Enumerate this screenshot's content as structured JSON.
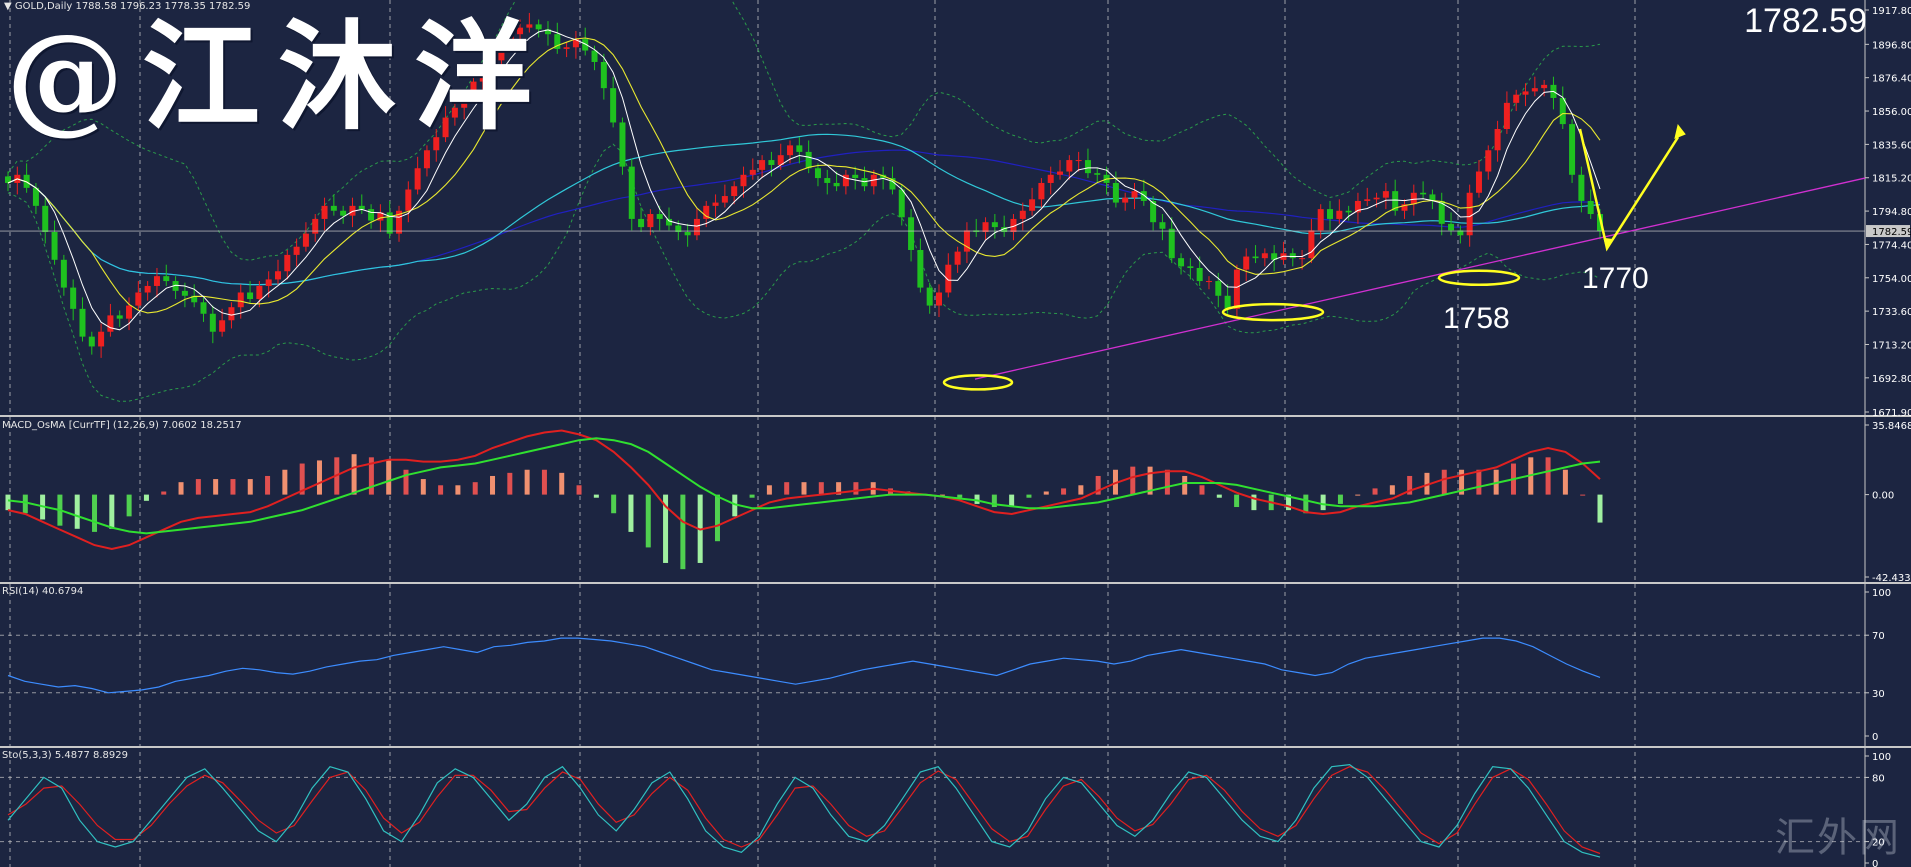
{
  "watermark": "@江沐洋",
  "corner_mark": "汇外网",
  "header": {
    "symbol": "GOLD,Daily",
    "ohlc": "1788.58 1796.23 1778.35 1782.59",
    "last_price": "1782.59"
  },
  "annotations": [
    "1758",
    "1770"
  ],
  "colors": {
    "background": "#1c2541",
    "bull_candle": "#ef2020",
    "bear_candle": "#1fc11f",
    "ma_fast": "#ffffff",
    "ma_mid": "#e8e830",
    "ma_slow1": "#30c8d8",
    "ma_slow2": "#2020c0",
    "trendline": "#d030d0",
    "arrow": "#ffff20",
    "rsi": "#3c8cff",
    "sto_main": "#30c0c0",
    "sto_signal": "#e02020"
  },
  "chart_data": [
    {
      "type": "candlestick",
      "title": "GOLD,Daily",
      "ylim": [
        1671.9,
        1917.8
      ],
      "yticks": [
        "1917.80",
        "1896.80",
        "1876.40",
        "1856.00",
        "1835.60",
        "1815.20",
        "1794.80",
        "1774.40",
        "1754.00",
        "1733.60",
        "1713.20",
        "1692.80",
        "1671.90"
      ],
      "last_price_tag": "1782.59",
      "close": [
        1812,
        1817,
        1809,
        1798,
        1782,
        1765,
        1748,
        1735,
        1718,
        1712,
        1721,
        1731,
        1729,
        1737,
        1745,
        1749,
        1755,
        1752,
        1746,
        1743,
        1739,
        1732,
        1721,
        1728,
        1736,
        1745,
        1741,
        1749,
        1753,
        1758,
        1768,
        1773,
        1781,
        1790,
        1798,
        1795,
        1792,
        1798,
        1796,
        1789,
        1794,
        1781,
        1795,
        1808,
        1821,
        1832,
        1840,
        1852,
        1858,
        1864,
        1874,
        1880,
        1887,
        1897,
        1903,
        1907,
        1909,
        1906,
        1903,
        1894,
        1895,
        1900,
        1893,
        1886,
        1870,
        1849,
        1822,
        1790,
        1785,
        1793,
        1790,
        1786,
        1782,
        1780,
        1790,
        1798,
        1800,
        1804,
        1810,
        1817,
        1820,
        1826,
        1823,
        1829,
        1835,
        1831,
        1821,
        1815,
        1812,
        1810,
        1817,
        1815,
        1810,
        1817,
        1815,
        1808,
        1791,
        1771,
        1748,
        1737,
        1745,
        1762,
        1770,
        1783,
        1782,
        1788,
        1785,
        1782,
        1790,
        1795,
        1802,
        1812,
        1817,
        1819,
        1826,
        1826,
        1818,
        1817,
        1812,
        1800,
        1803,
        1807,
        1801,
        1788,
        1784,
        1766,
        1761,
        1760,
        1752,
        1752,
        1743,
        1735,
        1759,
        1767,
        1766,
        1769,
        1765,
        1769,
        1766,
        1766,
        1783,
        1796,
        1790,
        1795,
        1794,
        1801,
        1802,
        1803,
        1807,
        1795,
        1799,
        1806,
        1805,
        1801,
        1787,
        1783,
        1780,
        1806,
        1819,
        1832,
        1845,
        1861,
        1866,
        1868,
        1870,
        1872,
        1864,
        1848,
        1817,
        1801,
        1793,
        1782.59
      ],
      "indicators": [
        "MA white",
        "MA yellow",
        "MA cyan",
        "MA blue",
        "Bollinger bands (green dotted)"
      ],
      "marked_levels": [
        1758,
        1770
      ]
    },
    {
      "type": "histogram",
      "title": "MACD_OsMA [CurrTF] (12,26,9) 7.0602 18.2517",
      "ylim": [
        -42.4336,
        35.8468
      ],
      "yticks": [
        "35.8468",
        "0.00",
        "-42.4336"
      ],
      "series": [
        {
          "name": "MACD",
          "values": [
            -8,
            -10,
            -14,
            -18,
            -22,
            -26,
            -28,
            -26,
            -22,
            -18,
            -14,
            -12,
            -11,
            -10,
            -9,
            -6,
            -2,
            2,
            6,
            10,
            14,
            16,
            18,
            18,
            17,
            17,
            18,
            20,
            24,
            27,
            30,
            32,
            33,
            31,
            28,
            22,
            14,
            5,
            -6,
            -14,
            -18,
            -16,
            -12,
            -8,
            -4,
            -2,
            -1,
            0,
            1,
            2,
            3,
            2,
            1,
            0,
            -1,
            -3,
            -6,
            -9,
            -10,
            -8,
            -6,
            -4,
            -2,
            2,
            6,
            9,
            11,
            12,
            12,
            9,
            5,
            1,
            -2,
            -4,
            -6,
            -9,
            -10,
            -9,
            -6,
            -4,
            -2,
            2,
            5,
            8,
            10,
            12,
            14,
            18,
            22,
            24,
            22,
            16,
            8
          ]
        },
        {
          "name": "Signal",
          "values": [
            -3,
            -4,
            -6,
            -8,
            -11,
            -14,
            -17,
            -19,
            -20,
            -19,
            -18,
            -17,
            -16,
            -15,
            -14,
            -12,
            -10,
            -8,
            -5,
            -2,
            1,
            4,
            7,
            10,
            12,
            14,
            15,
            16,
            18,
            20,
            22,
            24,
            26,
            28,
            29,
            28,
            26,
            22,
            16,
            10,
            4,
            -1,
            -5,
            -7,
            -7,
            -6,
            -5,
            -4,
            -3,
            -2,
            -1,
            0,
            0,
            0,
            -1,
            -2,
            -3,
            -5,
            -6,
            -7,
            -7,
            -6,
            -5,
            -4,
            -2,
            0,
            2,
            4,
            6,
            6,
            6,
            5,
            3,
            1,
            -1,
            -3,
            -5,
            -6,
            -6,
            -6,
            -5,
            -4,
            -2,
            0,
            2,
            4,
            6,
            8,
            10,
            12,
            14,
            16,
            17
          ]
        }
      ]
    },
    {
      "type": "line",
      "title": "RSI(14) 40.6794",
      "ylim": [
        0,
        100
      ],
      "yticks": [
        "100",
        "70",
        "30",
        "0"
      ],
      "series": [
        {
          "name": "RSI(14)",
          "values": [
            42,
            38,
            36,
            34,
            35,
            33,
            30,
            31,
            32,
            34,
            38,
            40,
            42,
            45,
            47,
            46,
            44,
            43,
            45,
            48,
            50,
            52,
            53,
            56,
            58,
            60,
            62,
            60,
            58,
            62,
            63,
            65,
            66,
            68,
            68,
            67,
            66,
            64,
            62,
            58,
            54,
            50,
            46,
            44,
            42,
            40,
            38,
            36,
            38,
            40,
            43,
            46,
            48,
            50,
            52,
            50,
            48,
            46,
            44,
            42,
            46,
            50,
            52,
            54,
            53,
            52,
            50,
            52,
            56,
            58,
            60,
            58,
            56,
            54,
            52,
            50,
            46,
            44,
            42,
            44,
            50,
            54,
            56,
            58,
            60,
            62,
            64,
            66,
            68,
            68,
            66,
            62,
            56,
            50,
            45,
            40.68
          ]
        }
      ]
    },
    {
      "type": "line",
      "title": "Sto(5,3,3) 5.4877 8.8929",
      "ylim": [
        0,
        100
      ],
      "yticks": [
        "100",
        "80",
        "20",
        "0"
      ],
      "series": [
        {
          "name": "%K",
          "values": [
            40,
            60,
            80,
            70,
            40,
            20,
            15,
            20,
            40,
            60,
            80,
            88,
            70,
            50,
            30,
            20,
            40,
            70,
            90,
            85,
            60,
            30,
            20,
            45,
            75,
            88,
            80,
            60,
            40,
            55,
            80,
            90,
            70,
            45,
            30,
            50,
            75,
            85,
            60,
            30,
            15,
            10,
            25,
            55,
            80,
            70,
            45,
            25,
            20,
            35,
            60,
            85,
            90,
            70,
            45,
            20,
            15,
            30,
            60,
            80,
            75,
            55,
            35,
            25,
            40,
            65,
            85,
            80,
            60,
            40,
            25,
            20,
            40,
            70,
            90,
            92,
            80,
            60,
            40,
            20,
            15,
            35,
            65,
            90,
            88,
            70,
            45,
            20,
            10,
            5.49
          ]
        },
        {
          "name": "%D",
          "values": [
            45,
            55,
            70,
            72,
            55,
            35,
            22,
            22,
            35,
            55,
            72,
            82,
            75,
            58,
            40,
            28,
            35,
            58,
            80,
            85,
            68,
            42,
            28,
            38,
            62,
            82,
            82,
            68,
            48,
            50,
            70,
            85,
            78,
            55,
            38,
            45,
            65,
            80,
            68,
            42,
            22,
            15,
            22,
            45,
            70,
            72,
            55,
            35,
            25,
            30,
            52,
            75,
            86,
            78,
            55,
            32,
            20,
            25,
            50,
            72,
            78,
            62,
            42,
            30,
            36,
            55,
            78,
            82,
            68,
            48,
            32,
            25,
            35,
            60,
            82,
            90,
            85,
            68,
            48,
            28,
            18,
            28,
            55,
            80,
            88,
            78,
            55,
            30,
            15,
            8.89
          ]
        }
      ]
    }
  ]
}
